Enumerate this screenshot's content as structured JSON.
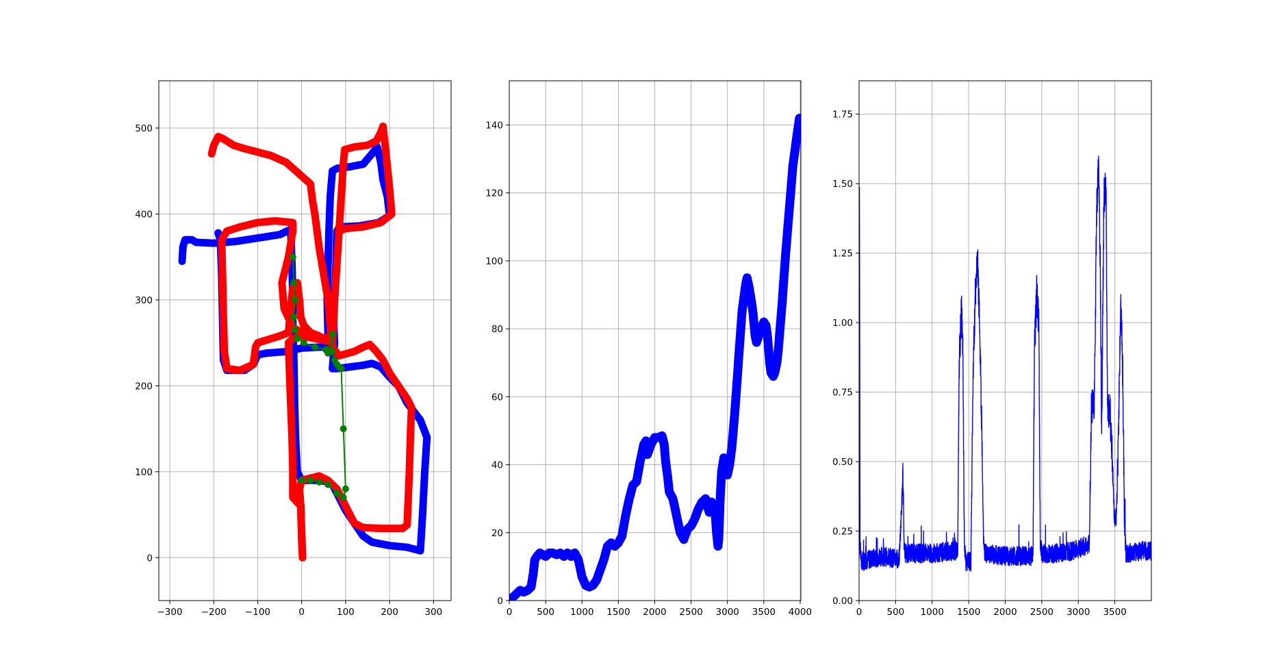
{
  "figure": {
    "background": "#ffffff",
    "grid_color": "#b0b0b0"
  },
  "chart_data": [
    {
      "type": "line",
      "title": "",
      "xlabel": "",
      "ylabel": "",
      "grid": true,
      "xlim": [
        -325,
        340
      ],
      "ylim": [
        -50,
        555
      ],
      "xticks": [
        -300,
        -200,
        -100,
        0,
        100,
        200,
        300
      ],
      "xtick_labels": [
        "−300",
        "−200",
        "−100",
        "0",
        "100",
        "200",
        "300"
      ],
      "yticks": [
        0,
        100,
        200,
        300,
        400,
        500
      ],
      "ytick_labels": [
        "0",
        "100",
        "200",
        "300",
        "400",
        "500"
      ],
      "series": [
        {
          "color": "#0000ff",
          "style": "thick",
          "x": [
            -270,
            -268,
            -260,
            -240,
            -200,
            -150,
            -100,
            -50,
            -20,
            -22,
            -25,
            -28,
            -30,
            -40,
            -60,
            -100,
            -150,
            -180,
            -182,
            -183,
            -185,
            -190,
            -192,
            -175,
            -110,
            -105,
            -100,
            -70,
            -35,
            0,
            30,
            55,
            70,
            68,
            60,
            55,
            58,
            60,
            62,
            65,
            140,
            270,
            275,
            285,
            290,
            295,
            260,
            230,
            170,
            150,
            100,
            80
          ],
          "y": [
            345,
            360,
            368,
            368,
            366,
            368,
            372,
            376,
            382,
            350,
            320,
            290,
            270,
            250,
            240,
            238,
            236,
            234,
            260,
            310,
            360,
            375,
            380,
            382,
            380,
            372,
            368,
            370,
            372,
            372,
            380,
            382,
            380,
            280,
            230,
            200,
            180,
            160,
            140,
            120,
            240,
            190,
            140,
            100,
            50,
            10,
            15,
            18,
            20,
            22,
            60,
            90
          ]
        },
        {
          "color": "#0000ff",
          "style": "thick",
          "x": [
            -30,
            -25,
            -20,
            0,
            30,
            55,
            58,
            60,
            62,
            60,
            57,
            40,
            30,
            25,
            -5,
            -10,
            -10,
            -8
          ],
          "y": [
            248,
            246,
            245,
            245,
            246,
            250,
            230,
            200,
            150,
            100,
            70,
            60,
            60,
            95,
            95,
            140,
            200,
            248
          ],
          "hidden": true
        }
      ]
    },
    {
      "type": "line",
      "title": "",
      "xlabel": "",
      "ylabel": "",
      "grid": true,
      "xlim": [
        0,
        4010
      ],
      "ylim": [
        0,
        153
      ],
      "xticks": [
        0,
        500,
        1000,
        1500,
        2000,
        2500,
        3000,
        3500,
        4000
      ],
      "xtick_labels": [
        "0",
        "500",
        "1000",
        "1500",
        "2000",
        "2500",
        "3000",
        "3500",
        "4000"
      ],
      "yticks": [
        0,
        20,
        40,
        60,
        80,
        100,
        120,
        140
      ],
      "ytick_labels": [
        "0",
        "20",
        "40",
        "60",
        "80",
        "100",
        "120",
        "140"
      ],
      "series": [
        {
          "color": "#0000ff",
          "style": "thick",
          "x": [
            0,
            50,
            100,
            150,
            200,
            250,
            300,
            330,
            350,
            380,
            420,
            500,
            550,
            600,
            650,
            700,
            750,
            800,
            850,
            900,
            950,
            1000,
            1050,
            1100,
            1150,
            1200,
            1250,
            1300,
            1350,
            1400,
            1450,
            1500,
            1550,
            1600,
            1650,
            1700,
            1750,
            1800,
            1850,
            1880,
            1900,
            1950,
            2000,
            2050,
            2100,
            2130,
            2150,
            2180,
            2200,
            2250,
            2300,
            2350,
            2400,
            2450,
            2500,
            2550,
            2600,
            2650,
            2700,
            2720,
            2750,
            2780,
            2800,
            2830,
            2850,
            2870,
            2880,
            2900,
            2920,
            2950,
            2970,
            3000,
            3030,
            3060,
            3100,
            3150,
            3200,
            3250,
            3270,
            3300,
            3330,
            3350,
            3380,
            3400,
            3430,
            3460,
            3500,
            3530,
            3550,
            3580,
            3600,
            3630,
            3650,
            3680,
            3700,
            3750,
            3800,
            3850,
            3900,
            3950,
            3990
          ],
          "y": [
            0.5,
            1,
            2,
            3,
            2.5,
            3,
            4,
            8,
            12,
            13,
            14,
            13,
            14,
            14,
            13.5,
            14,
            13,
            14,
            13,
            14,
            12,
            7,
            4.5,
            4,
            4.5,
            6,
            9,
            12,
            16,
            17,
            16,
            17,
            19,
            25,
            30,
            34,
            35,
            41,
            46,
            47,
            43,
            46,
            48,
            48,
            48.5,
            46,
            41,
            36,
            32,
            30,
            25,
            20,
            18,
            21,
            22,
            24,
            27,
            29,
            30,
            28,
            26,
            29,
            28,
            26,
            20,
            16,
            18,
            30,
            38,
            42,
            39,
            37,
            40,
            45,
            55,
            70,
            85,
            93,
            95,
            92,
            88,
            85,
            78,
            76,
            78,
            80,
            82,
            81,
            78,
            70,
            67,
            66,
            67,
            70,
            74,
            87,
            102,
            115,
            128,
            136,
            142
          ]
        }
      ]
    },
    {
      "type": "line",
      "title": "",
      "xlabel": "",
      "ylabel": "",
      "grid": true,
      "xlim": [
        0,
        4000
      ],
      "ylim": [
        0,
        1.87
      ],
      "xticks": [
        0,
        500,
        1000,
        1500,
        2000,
        2500,
        3000,
        3500
      ],
      "xtick_labels": [
        "0",
        "500",
        "1000",
        "1500",
        "2000",
        "2500",
        "3000",
        "3500"
      ],
      "yticks": [
        0,
        0.25,
        0.5,
        0.75,
        1.0,
        1.25,
        1.5,
        1.75
      ],
      "ytick_labels": [
        "0.00",
        "0.25",
        "0.50",
        "0.75",
        "1.00",
        "1.25",
        "1.50",
        "1.75"
      ],
      "series": [
        {
          "color": "#0000ff",
          "style": "thin",
          "noise": true,
          "keypoints": [
            [
              0,
              0.15
            ],
            [
              5,
              1.67
            ],
            [
              12,
              0.2
            ],
            [
              30,
              0.14
            ],
            [
              300,
              0.16
            ],
            [
              550,
              0.15
            ],
            [
              600,
              0.44
            ],
            [
              620,
              0.17
            ],
            [
              1000,
              0.17
            ],
            [
              1350,
              0.18
            ],
            [
              1370,
              0.85
            ],
            [
              1400,
              1.05
            ],
            [
              1420,
              0.9
            ],
            [
              1440,
              0.2
            ],
            [
              1460,
              0.14
            ],
            [
              1530,
              0.14
            ],
            [
              1560,
              0.8
            ],
            [
              1590,
              1.1
            ],
            [
              1620,
              1.23
            ],
            [
              1650,
              1.0
            ],
            [
              1680,
              0.6
            ],
            [
              1700,
              0.25
            ],
            [
              1720,
              0.17
            ],
            [
              2000,
              0.16
            ],
            [
              2380,
              0.16
            ],
            [
              2400,
              0.9
            ],
            [
              2430,
              1.1
            ],
            [
              2460,
              1.0
            ],
            [
              2480,
              0.2
            ],
            [
              2500,
              0.17
            ],
            [
              2800,
              0.17
            ],
            [
              3150,
              0.2
            ],
            [
              3180,
              0.7
            ],
            [
              3220,
              0.72
            ],
            [
              3250,
              1.4
            ],
            [
              3280,
              1.57
            ],
            [
              3300,
              1.2
            ],
            [
              3320,
              0.6
            ],
            [
              3350,
              1.45
            ],
            [
              3380,
              1.48
            ],
            [
              3400,
              0.65
            ],
            [
              3430,
              0.7
            ],
            [
              3460,
              0.55
            ],
            [
              3490,
              0.3
            ],
            [
              3520,
              0.3
            ],
            [
              3550,
              0.6
            ],
            [
              3580,
              1.09
            ],
            [
              3610,
              0.8
            ],
            [
              3630,
              0.3
            ],
            [
              3650,
              0.17
            ],
            [
              3900,
              0.18
            ],
            [
              4000,
              0.18
            ]
          ]
        }
      ]
    }
  ]
}
